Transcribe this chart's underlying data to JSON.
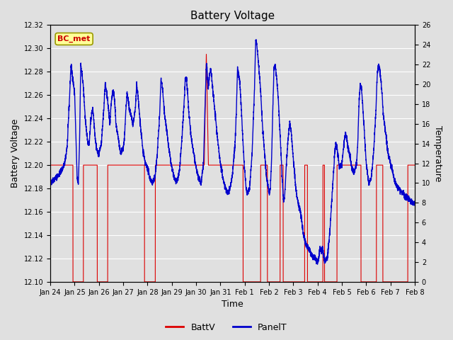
{
  "title": "Battery Voltage",
  "xlabel": "Time",
  "ylabel_left": "Battery Voltage",
  "ylabel_right": "Temperature",
  "ylim_left": [
    12.1,
    12.32
  ],
  "ylim_right": [
    0,
    26
  ],
  "yticks_left": [
    12.1,
    12.12,
    12.14,
    12.16,
    12.18,
    12.2,
    12.22,
    12.24,
    12.26,
    12.28,
    12.3,
    12.32
  ],
  "yticks_right": [
    0,
    2,
    4,
    6,
    8,
    10,
    12,
    14,
    16,
    18,
    20,
    22,
    24,
    26
  ],
  "xtick_labels": [
    "Jan 24",
    "Jan 25",
    "Jan 26",
    "Jan 27",
    "Jan 28",
    "Jan 29",
    "Jan 30",
    "Jan 31",
    "Feb 1",
    "Feb 2",
    "Feb 3",
    "Feb 4",
    "Feb 5",
    "Feb 6",
    "Feb 7",
    "Feb 8"
  ],
  "background_color": "#e0e0e0",
  "plot_bg_color": "#e0e0e0",
  "grid_color": "#ffffff",
  "label_box_text": "BC_met",
  "label_box_bg": "#ffff99",
  "label_box_edge": "#999900",
  "label_box_text_color": "#cc0000",
  "batt_color": "#dd0000",
  "panel_color": "#0000cc",
  "legend_battv": "BattV",
  "legend_panelt": "PanelT",
  "batt_v_flat": 12.2,
  "batt_v_low": 12.1,
  "n_days": 15,
  "n_per_day": 288,
  "figsize": [
    6.4,
    4.8
  ],
  "dpi": 100
}
